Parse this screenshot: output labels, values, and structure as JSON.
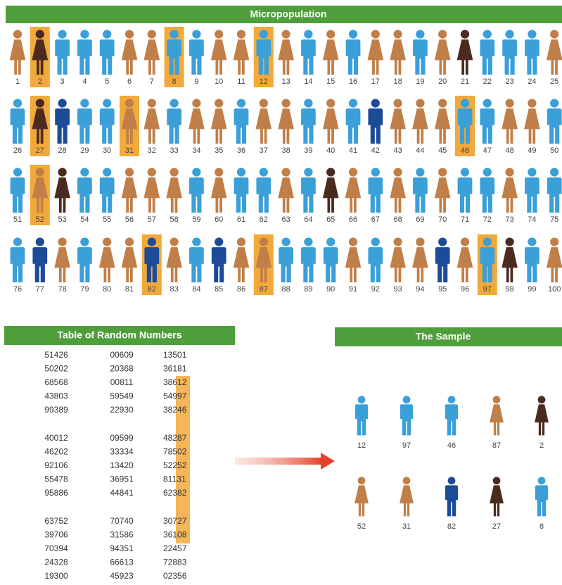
{
  "population": {
    "title": "Micropopulation",
    "labels": [
      "1",
      "2",
      "3",
      "4",
      "5",
      "6",
      "7",
      "8",
      "9",
      "10",
      "11",
      "12",
      "13",
      "14",
      "15",
      "16",
      "17",
      "18",
      "19",
      "20",
      "21",
      "22",
      "23",
      "24",
      "25",
      "26",
      "27",
      "28",
      "29",
      "30",
      "31",
      "32",
      "33",
      "34",
      "35",
      "36",
      "37",
      "38",
      "39",
      "40",
      "41",
      "42",
      "43",
      "44",
      "45",
      "46",
      "47",
      "48",
      "49",
      "50",
      "51",
      "52",
      "53",
      "54",
      "55",
      "56",
      "57",
      "58",
      "59",
      "60",
      "61",
      "62",
      "63",
      "64",
      "65",
      "66",
      "67",
      "68",
      "69",
      "70",
      "71",
      "72",
      "73",
      "74",
      "75",
      "76",
      "77",
      "78",
      "79",
      "80",
      "81",
      "82",
      "83",
      "84",
      "85",
      "86",
      "87",
      "88",
      "89",
      "90",
      "91",
      "92",
      "93",
      "94",
      "95",
      "96",
      "97",
      "98",
      "99",
      "100"
    ]
  },
  "random_table": {
    "title": "Table of Random Numbers",
    "columns": [
      [
        "51426",
        "50202",
        "68568",
        "43803",
        "99389",
        "40012",
        "46202",
        "92106",
        "55478",
        "95886",
        "63752",
        "39706",
        "70394",
        "24328",
        "19300"
      ],
      [
        "00609",
        "20368",
        "00811",
        "59549",
        "22930",
        "09599",
        "33334",
        "13420",
        "36951",
        "44841",
        "70740",
        "31586",
        "94351",
        "66613",
        "45923"
      ],
      [
        "13501",
        "36181",
        "38612",
        "54997",
        "38246",
        "48287",
        "78502",
        "52252",
        "81131",
        "62382",
        "30727",
        "36108",
        "22457",
        "72883",
        "02356"
      ]
    ]
  },
  "sample": {
    "title": "The Sample",
    "labels": [
      "12",
      "97",
      "46",
      "87",
      "2",
      "52",
      "31",
      "82",
      "27",
      "8"
    ]
  }
}
